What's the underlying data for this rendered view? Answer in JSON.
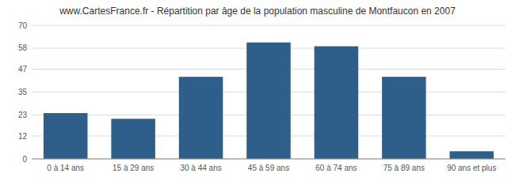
{
  "chart_data": {
    "type": "bar",
    "title": "www.CartesFrance.fr - Répartition par âge de la population masculine de Montfaucon en 2007",
    "categories": [
      "0 à 14 ans",
      "15 à 29 ans",
      "30 à 44 ans",
      "45 à 59 ans",
      "60 à 74 ans",
      "75 à 89 ans",
      "90 ans et plus"
    ],
    "values": [
      24,
      21,
      43,
      61,
      59,
      43,
      4
    ],
    "color": "#2e5f8a",
    "ylim": [
      0,
      70
    ],
    "yticks": [
      0,
      12,
      23,
      35,
      47,
      58,
      70
    ],
    "grid": true
  }
}
